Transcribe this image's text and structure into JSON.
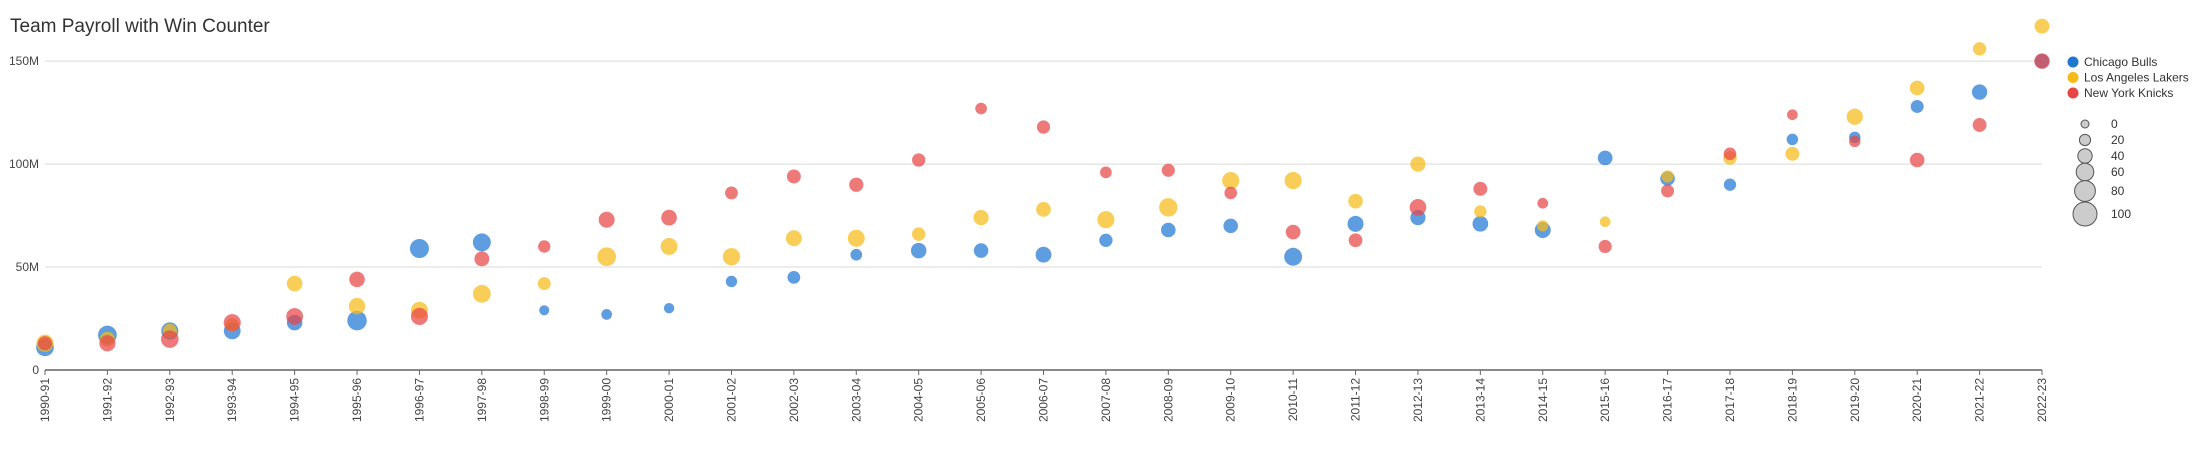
{
  "chart_data": {
    "type": "scatter",
    "title": "Team Payroll with Win Counter",
    "categories": [
      "1990-91",
      "1991-92",
      "1992-93",
      "1993-94",
      "1994-95",
      "1995-96",
      "1996-97",
      "1997-98",
      "1998-99",
      "1999-00",
      "2000-01",
      "2001-02",
      "2002-03",
      "2003-04",
      "2004-05",
      "2005-06",
      "2006-07",
      "2007-08",
      "2008-09",
      "2009-10",
      "2010-11",
      "2011-12",
      "2012-13",
      "2013-14",
      "2014-15",
      "2015-16",
      "2016-17",
      "2017-18",
      "2018-19",
      "2019-20",
      "2020-21",
      "2021-22",
      "2022-23"
    ],
    "y_ticks": [
      {
        "value": 0,
        "label": "0"
      },
      {
        "value": 50,
        "label": "50M"
      },
      {
        "value": 100,
        "label": "100M"
      },
      {
        "value": 150,
        "label": "150M"
      }
    ],
    "ylim": [
      0,
      170
    ],
    "y_unit": "M",
    "size_encoding": "wins",
    "size_legend": [
      "0",
      "20",
      "40",
      "60",
      "80",
      "100"
    ],
    "legend_position": "top-right",
    "gridlines": true,
    "series": [
      {
        "name": "Chicago Bulls",
        "color": "#1f77d4",
        "y": [
          11,
          17,
          19,
          19,
          23,
          24,
          59,
          62,
          29,
          27,
          30,
          43,
          45,
          56,
          58,
          58,
          56,
          63,
          68,
          70,
          55,
          71,
          74,
          71,
          68,
          103,
          93,
          90,
          112,
          113,
          128,
          135,
          150
        ],
        "wins": [
          61,
          67,
          57,
          55,
          47,
          72,
          69,
          62,
          13,
          17,
          15,
          21,
          30,
          23,
          47,
          41,
          49,
          33,
          41,
          41,
          62,
          50,
          45,
          48,
          50,
          42,
          41,
          27,
          22,
          22,
          31,
          46,
          40
        ]
      },
      {
        "name": "Los Angeles Lakers",
        "color": "#f6bb17",
        "y": [
          13,
          15,
          19,
          22,
          42,
          31,
          29,
          37,
          42,
          55,
          60,
          55,
          64,
          64,
          66,
          74,
          78,
          73,
          79,
          92,
          92,
          82,
          100,
          77,
          70,
          72,
          94,
          103,
          105,
          123,
          137,
          156,
          167
        ],
        "wins": [
          58,
          43,
          39,
          33,
          48,
          53,
          56,
          61,
          31,
          67,
          56,
          58,
          50,
          56,
          34,
          45,
          42,
          57,
          65,
          57,
          57,
          41,
          45,
          27,
          21,
          17,
          26,
          35,
          37,
          52,
          42,
          33,
          43
        ]
      },
      {
        "name": "New York Knicks",
        "color": "#e84545",
        "y": [
          13,
          13,
          15,
          23,
          26,
          44,
          26,
          54,
          60,
          73,
          74,
          86,
          94,
          90,
          102,
          127,
          118,
          96,
          97,
          86,
          67,
          63,
          79,
          88,
          81,
          60,
          87,
          105,
          124,
          111,
          102,
          119,
          150
        ],
        "wins": [
          39,
          51,
          60,
          57,
          55,
          47,
          57,
          43,
          27,
          50,
          48,
          30,
          37,
          39,
          33,
          23,
          33,
          23,
          32,
          29,
          42,
          36,
          54,
          37,
          17,
          32,
          31,
          29,
          17,
          21,
          41,
          37,
          47
        ]
      }
    ]
  }
}
